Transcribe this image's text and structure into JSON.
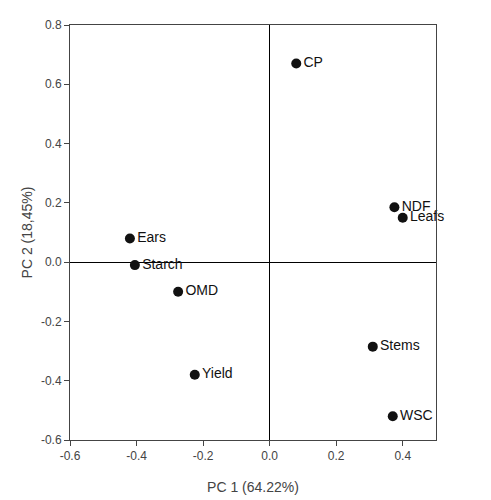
{
  "chart_data": {
    "type": "scatter",
    "x": [
      0.08,
      0.375,
      0.4,
      -0.42,
      -0.405,
      -0.275,
      -0.225,
      0.31,
      0.37
    ],
    "values": [
      0.67,
      0.185,
      0.15,
      0.08,
      -0.01,
      -0.1,
      -0.38,
      -0.285,
      -0.52
    ],
    "labels": [
      "CP",
      "NDF",
      "Leafs",
      "Ears",
      "Starch",
      "OMD",
      "Yield",
      "Stems",
      "WSC"
    ],
    "color": "#111111",
    "marker": "circle",
    "xlabel": "PC 1 (64.22%)",
    "ylabel": "PC 2 (18,45%)",
    "xlim": [
      -0.6,
      0.5
    ],
    "ylim": [
      -0.6,
      0.8
    ],
    "xticks": [
      -0.6,
      -0.4,
      -0.2,
      {
        "value": 0,
        "label": "0.0"
      },
      0.2,
      0.4
    ],
    "yticks": [
      -0.6,
      -0.4,
      -0.2,
      {
        "value": 0,
        "label": "0.0"
      },
      0.2,
      0.4,
      0.6,
      0.8
    ],
    "grid": false
  }
}
